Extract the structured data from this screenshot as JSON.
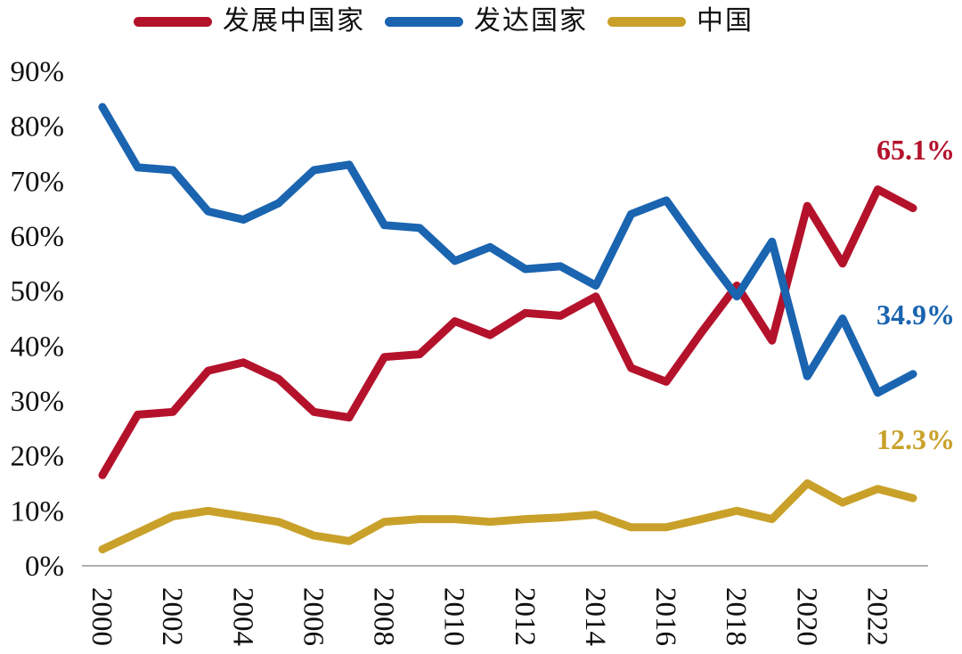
{
  "legend": {
    "items": [
      {
        "label": "发展中国家",
        "color": "#b4122b"
      },
      {
        "label": "发达国家",
        "color": "#1a64b0"
      },
      {
        "label": "中国",
        "color": "#c9a12a"
      }
    ]
  },
  "chart_data": {
    "type": "line",
    "title": "",
    "xlabel": "",
    "ylabel": "",
    "x": [
      2000,
      2001,
      2002,
      2003,
      2004,
      2005,
      2006,
      2007,
      2008,
      2009,
      2010,
      2011,
      2012,
      2013,
      2014,
      2015,
      2016,
      2017,
      2018,
      2019,
      2020,
      2021,
      2022,
      2023
    ],
    "x_tick_labels": [
      "2000",
      "2002",
      "2004",
      "2006",
      "2008",
      "2010",
      "2012",
      "2014",
      "2016",
      "2018",
      "2020",
      "2022"
    ],
    "y_tick_labels": [
      "0%",
      "10%",
      "20%",
      "30%",
      "40%",
      "50%",
      "60%",
      "70%",
      "80%",
      "90%"
    ],
    "ylim": [
      0,
      90
    ],
    "grid": false,
    "legend_position": "top",
    "series": [
      {
        "name": "发展中国家",
        "color": "#b4122b",
        "values": [
          16.5,
          27.5,
          28,
          35.5,
          37,
          34,
          28,
          27,
          38,
          38.5,
          44.5,
          42,
          46,
          45.5,
          49,
          36,
          33.5,
          42.5,
          51,
          41,
          65.5,
          55,
          68.5,
          65.1
        ],
        "end_label": "65.1%"
      },
      {
        "name": "发达国家",
        "color": "#1a64b0",
        "values": [
          83.5,
          72.5,
          72,
          64.5,
          63,
          66,
          72,
          73,
          62,
          61.5,
          55.5,
          58,
          54,
          54.5,
          51,
          64,
          66.5,
          57.5,
          49,
          59,
          34.5,
          45,
          31.5,
          34.9
        ],
        "end_label": "34.9%"
      },
      {
        "name": "中国",
        "color": "#c9a12a",
        "values": [
          3,
          6,
          9,
          10,
          9,
          8,
          5.5,
          4.5,
          8,
          8.5,
          8.5,
          8,
          8.5,
          8.8,
          9.3,
          7,
          7,
          8.5,
          10,
          8.5,
          15,
          11.5,
          14,
          12.3
        ],
        "end_label": "12.3%"
      }
    ]
  }
}
